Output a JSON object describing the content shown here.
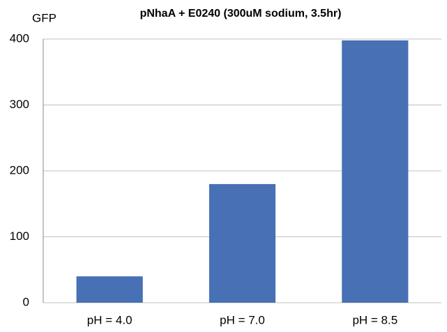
{
  "chart_data": {
    "type": "bar",
    "title": "pNhaA + E0240 (300uM sodium, 3.5hr)",
    "y_label": "GFP",
    "categories": [
      "pH = 4.0",
      "pH = 7.0",
      "pH = 8.5"
    ],
    "values": [
      40,
      180,
      398
    ],
    "color": "#4870b4",
    "ylim": [
      0,
      400
    ],
    "yticks": [
      0,
      100,
      200,
      300,
      400
    ],
    "grid": true
  }
}
